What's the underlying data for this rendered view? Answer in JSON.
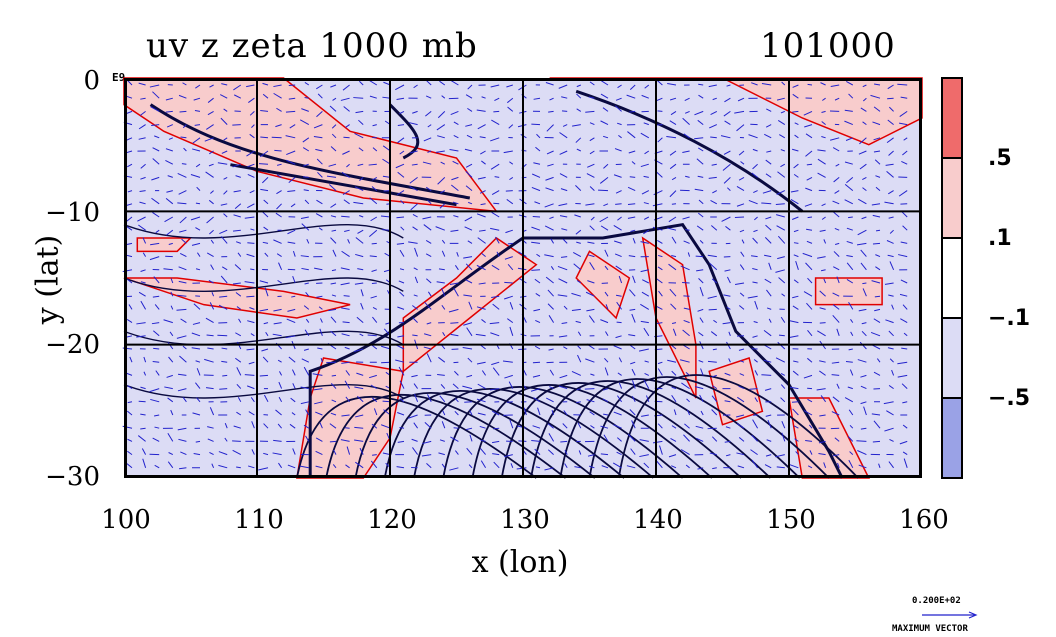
{
  "title": {
    "left": "uv z zeta 1000 mb",
    "right": "101000"
  },
  "corner_label": "E9",
  "axes": {
    "xlabel": "x (lon)",
    "ylabel": "y (lat)",
    "xticks": [
      "100",
      "110",
      "120",
      "130",
      "140",
      "150",
      "160"
    ],
    "yticks": [
      "0",
      "−10",
      "−20",
      "−30"
    ]
  },
  "colorbar": {
    "labels": [
      ".5",
      ".1",
      "−.1",
      "−.5"
    ],
    "levels": [
      {
        "color": "#ef6b6b"
      },
      {
        "color": "#f8cccc"
      },
      {
        "color": "#ffffff"
      },
      {
        "color": "#dcdcf5"
      },
      {
        "color": "#9aa2e6"
      }
    ]
  },
  "vector_legend": {
    "value": "0.200E+02",
    "label": "MAXIMUM VECTOR",
    "color": "#2222cc"
  },
  "colors": {
    "positive": "#f8cccc",
    "positive_strong": "#ef6b6b",
    "negative": "#dcdcf5",
    "contour_red": "#e00000",
    "contour_dark": "#0a0a40",
    "vectors": "#2222cc"
  },
  "chart_data": {
    "type": "heatmap",
    "x_range": [
      100,
      160
    ],
    "y_range": [
      -30,
      0
    ],
    "grid": true,
    "gridlines_x": [
      110,
      120,
      130,
      140,
      150
    ],
    "gridlines_y": [
      -10,
      -20
    ]
  }
}
